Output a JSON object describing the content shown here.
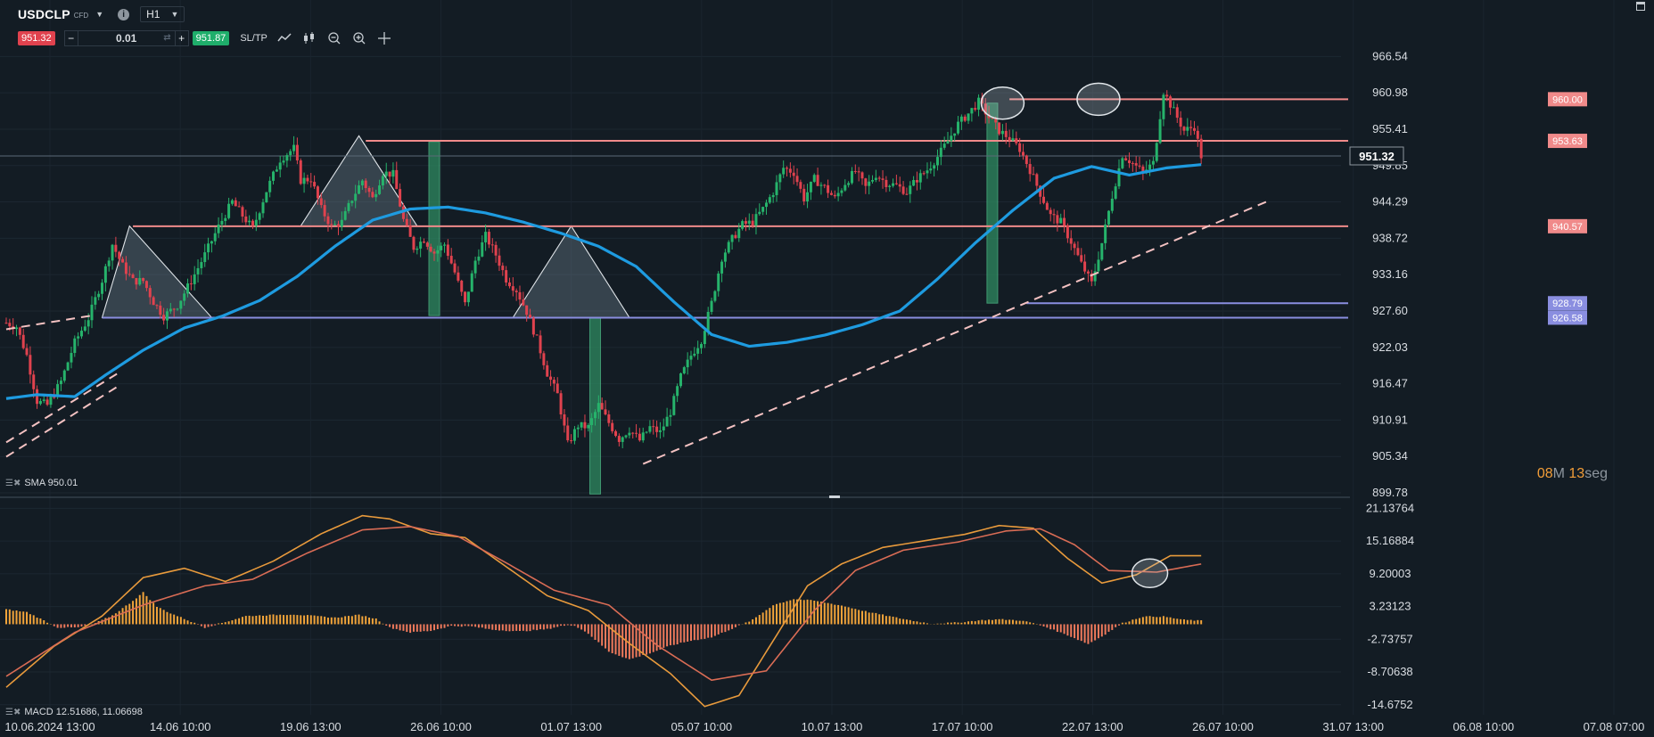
{
  "toolbar": {
    "symbol": "USDCLP",
    "symbol_type": "CFD",
    "timeframe": "H1",
    "sell_price": "951.32",
    "quantity": "0.01",
    "buy_price": "951.87",
    "sltp_label": "SL/TP"
  },
  "indicators": {
    "sma_label": "SMA 950.01",
    "macd_label": "MACD 12.51686, 11.06698"
  },
  "timer": {
    "minutes": "08",
    "m_unit": "M",
    "seconds": "13",
    "s_unit": "seg"
  },
  "colors": {
    "background": "#131c24",
    "bull": "#26b36b",
    "bear": "#e0424e",
    "sma": "#1e9be0",
    "resistance": "#f08a8a",
    "support": "#8a8ee0",
    "trend": "#f4c2c2",
    "macd_hist_pos": "#f2a43a",
    "macd_hist_neg": "#f07a5c",
    "macd_line": "#e89a3c",
    "signal_line": "#d96c55"
  },
  "chart_data": [
    {
      "type": "candlestick",
      "title": "USDCLP",
      "y_axis": {
        "ylim": [
          899.78,
          968.5
        ],
        "ticks": [
          "966.54",
          "960.98",
          "955.41",
          "949.85",
          "944.29",
          "938.72",
          "933.16",
          "927.60",
          "922.03",
          "916.47",
          "910.91",
          "905.34",
          "899.78"
        ]
      },
      "x_axis": {
        "ticks": [
          "10.06.2024 13:00",
          "14.06 10:00",
          "19.06 13:00",
          "26.06 10:00",
          "01.07 13:00",
          "05.07 10:00",
          "10.07 13:00",
          "17.07 10:00",
          "22.07 13:00",
          "26.07 10:00",
          "31.07 13:00",
          "06.08 10:00",
          "07.08 07:00"
        ]
      },
      "close_path": [
        [
          0,
          925.8
        ],
        [
          3,
          925.2
        ],
        [
          6,
          920.8
        ],
        [
          9,
          913.8
        ],
        [
          12,
          913.2
        ],
        [
          16,
          916.8
        ],
        [
          20,
          922.8
        ],
        [
          24,
          926.5
        ],
        [
          28,
          932.3
        ],
        [
          31,
          937.8
        ],
        [
          34,
          934.5
        ],
        [
          37,
          932.2
        ],
        [
          40,
          932.2
        ],
        [
          43,
          929.0
        ],
        [
          46,
          926.8
        ],
        [
          50,
          928.5
        ],
        [
          54,
          932.2
        ],
        [
          58,
          936.2
        ],
        [
          62,
          940.5
        ],
        [
          66,
          944.3
        ],
        [
          69,
          942.2
        ],
        [
          72,
          940.2
        ],
        [
          76,
          946.0
        ],
        [
          80,
          950.8
        ],
        [
          84,
          952.5
        ],
        [
          86,
          947.6
        ],
        [
          89,
          947.8
        ],
        [
          92,
          943.2
        ],
        [
          95,
          940.5
        ],
        [
          98,
          941.2
        ],
        [
          101,
          944.8
        ],
        [
          104,
          947.6
        ],
        [
          107,
          944.8
        ],
        [
          110,
          948.8
        ],
        [
          113,
          948.5
        ],
        [
          116,
          941.5
        ],
        [
          119,
          937.3
        ],
        [
          122,
          938.6
        ],
        [
          125,
          936.5
        ],
        [
          128,
          937.8
        ],
        [
          131,
          933.5
        ],
        [
          134,
          928.6
        ],
        [
          137,
          935.3
        ],
        [
          140,
          939.1
        ],
        [
          143,
          936.2
        ],
        [
          146,
          932.5
        ],
        [
          149,
          930.8
        ],
        [
          152,
          927.5
        ],
        [
          155,
          923.2
        ],
        [
          158,
          918.1
        ],
        [
          161,
          914.8
        ],
        [
          164,
          907.2
        ],
        [
          167,
          910.1
        ],
        [
          170,
          909.8
        ],
        [
          173,
          913.2
        ],
        [
          176,
          910.5
        ],
        [
          179,
          908.0
        ],
        [
          182,
          909.5
        ],
        [
          185,
          907.8
        ],
        [
          188,
          909.8
        ],
        [
          191,
          909.0
        ],
        [
          194,
          912.2
        ],
        [
          197,
          917.5
        ],
        [
          200,
          920.8
        ],
        [
          203,
          923.2
        ],
        [
          206,
          928.8
        ],
        [
          209,
          935.8
        ],
        [
          212,
          938.6
        ],
        [
          215,
          940.8
        ],
        [
          218,
          941.2
        ],
        [
          221,
          943.2
        ],
        [
          224,
          945.8
        ],
        [
          227,
          949.5
        ],
        [
          230,
          948.8
        ],
        [
          233,
          944.8
        ],
        [
          236,
          947.8
        ],
        [
          239,
          946.5
        ],
        [
          242,
          944.8
        ],
        [
          245,
          947.2
        ],
        [
          248,
          949.0
        ],
        [
          251,
          946.5
        ],
        [
          254,
          948.5
        ],
        [
          257,
          947.2
        ],
        [
          260,
          946.8
        ],
        [
          263,
          945.8
        ],
        [
          266,
          947.8
        ],
        [
          269,
          949.2
        ],
        [
          272,
          951.2
        ],
        [
          275,
          953.6
        ],
        [
          278,
          956.2
        ],
        [
          281,
          957.8
        ],
        [
          284,
          959.6
        ],
        [
          287,
          957.2
        ],
        [
          290,
          955.2
        ],
        [
          293,
          954.0
        ],
        [
          296,
          952.4
        ],
        [
          299,
          949.2
        ],
        [
          302,
          945.6
        ],
        [
          305,
          942.2
        ],
        [
          308,
          941.2
        ],
        [
          311,
          938.2
        ],
        [
          314,
          934.8
        ],
        [
          317,
          931.8
        ],
        [
          320,
          938.0
        ],
        [
          323,
          945.2
        ],
        [
          326,
          951.5
        ],
        [
          329,
          950.2
        ],
        [
          332,
          948.8
        ],
        [
          335,
          950.2
        ],
        [
          338,
          961.2
        ],
        [
          341,
          958.2
        ],
        [
          344,
          955.2
        ],
        [
          347,
          955.8
        ],
        [
          349,
          951.3
        ]
      ],
      "sma_path": [
        [
          0,
          914.2
        ],
        [
          9,
          914.8
        ],
        [
          20,
          914.5
        ],
        [
          29,
          917.8
        ],
        [
          40,
          921.6
        ],
        [
          52,
          925.0
        ],
        [
          63,
          926.8
        ],
        [
          74,
          929.2
        ],
        [
          85,
          932.9
        ],
        [
          96,
          937.5
        ],
        [
          107,
          941.5
        ],
        [
          118,
          943.2
        ],
        [
          129,
          943.5
        ],
        [
          140,
          942.6
        ],
        [
          151,
          941.2
        ],
        [
          162,
          939.5
        ],
        [
          173,
          937.5
        ],
        [
          184,
          934.4
        ],
        [
          195,
          929.0
        ],
        [
          206,
          924.0
        ],
        [
          217,
          922.2
        ],
        [
          228,
          922.8
        ],
        [
          239,
          923.9
        ],
        [
          250,
          925.5
        ],
        [
          261,
          927.6
        ],
        [
          272,
          932.5
        ],
        [
          283,
          938.0
        ],
        [
          294,
          943.0
        ],
        [
          306,
          947.9
        ],
        [
          317,
          949.7
        ],
        [
          328,
          948.4
        ],
        [
          339,
          949.5
        ],
        [
          349,
          950.0
        ]
      ],
      "levels": [
        {
          "value": 960.0,
          "label": "960.00",
          "color": "#f08a8a",
          "from_index": 293
        },
        {
          "value": 953.63,
          "label": "953.63",
          "color": "#f08a8a",
          "from_index": 105
        },
        {
          "value": 940.57,
          "label": "940.57",
          "color": "#f08a8a",
          "from_index": 37
        },
        {
          "value": 928.79,
          "label": "928.79",
          "color": "#8a8ee0",
          "from_index": 298
        },
        {
          "value": 926.58,
          "label": "926.58",
          "color": "#8a8ee0",
          "from_index": 28
        }
      ],
      "current_price": {
        "value": 951.32,
        "label": "951.32"
      },
      "annotations": {
        "triangles": [
          {
            "apex": [
              36,
              940.6
            ],
            "base_left": [
              28,
              926.6
            ],
            "base_right": [
              60,
              926.6
            ]
          },
          {
            "apex": [
              103,
              954.4
            ],
            "base_left": [
              86,
              940.6
            ],
            "base_right": [
              120,
              940.6
            ]
          },
          {
            "apex": [
              165,
              940.6
            ],
            "base_left": [
              148,
              926.6
            ],
            "base_right": [
              182,
              926.6
            ]
          }
        ],
        "vertical_bars": [
          {
            "index": 125,
            "y1": 953.5,
            "y2": 926.9
          },
          {
            "index": 172,
            "y1": 926.6,
            "y2": 899.6
          },
          {
            "index": 288,
            "y1": 959.4,
            "y2": 928.8
          }
        ],
        "ellipses": [
          {
            "index": 291,
            "value": 959.4
          },
          {
            "index": 319,
            "value": 960.0
          }
        ],
        "trendlines": [
          {
            "from": [
              186,
              904.2
            ],
            "to": [
              368,
              944.3
            ]
          },
          {
            "from": [
              0,
              905.3
            ],
            "to": [
              33,
              916.2
            ]
          },
          {
            "from": [
              0,
              907.5
            ],
            "to": [
              33,
              918.2
            ]
          },
          {
            "from": [
              0,
              924.8
            ],
            "to": [
              25,
              926.9
            ]
          }
        ]
      }
    },
    {
      "type": "macd",
      "series": [
        {
          "name": "MACD",
          "value": 12.51686
        },
        {
          "name": "Signal",
          "value": 11.06698
        }
      ],
      "y_axis": {
        "ylim": [
          -16.5,
          22.5
        ],
        "ticks": [
          "21.13764",
          "15.16884",
          "9.20003",
          "3.23123",
          "-2.73757",
          "-8.70638",
          "-14.6752"
        ]
      },
      "macd_path": [
        [
          0,
          -11.5
        ],
        [
          14,
          -4.0
        ],
        [
          28,
          1.5
        ],
        [
          40,
          8.5
        ],
        [
          52,
          10.2
        ],
        [
          64,
          7.8
        ],
        [
          78,
          11.5
        ],
        [
          92,
          16.5
        ],
        [
          104,
          19.8
        ],
        [
          112,
          19.2
        ],
        [
          124,
          16.5
        ],
        [
          134,
          15.8
        ],
        [
          146,
          10.5
        ],
        [
          158,
          5.2
        ],
        [
          170,
          2.5
        ],
        [
          182,
          -3.5
        ],
        [
          194,
          -9.0
        ],
        [
          204,
          -15.0
        ],
        [
          214,
          -13.0
        ],
        [
          224,
          -3.0
        ],
        [
          234,
          7.0
        ],
        [
          244,
          11.0
        ],
        [
          256,
          14.0
        ],
        [
          268,
          15.2
        ],
        [
          280,
          16.4
        ],
        [
          290,
          18.0
        ],
        [
          300,
          17.5
        ],
        [
          310,
          12.0
        ],
        [
          320,
          7.5
        ],
        [
          330,
          9.0
        ],
        [
          340,
          12.5
        ],
        [
          350,
          12.5
        ]
      ],
      "signal_path": [
        [
          0,
          -9.5
        ],
        [
          20,
          -1.5
        ],
        [
          40,
          3.5
        ],
        [
          58,
          7.0
        ],
        [
          72,
          8.2
        ],
        [
          88,
          13.0
        ],
        [
          104,
          17.2
        ],
        [
          118,
          17.8
        ],
        [
          132,
          16.0
        ],
        [
          146,
          11.2
        ],
        [
          160,
          6.2
        ],
        [
          176,
          3.5
        ],
        [
          190,
          -3.8
        ],
        [
          206,
          -10.2
        ],
        [
          222,
          -8.5
        ],
        [
          236,
          2.5
        ],
        [
          248,
          9.8
        ],
        [
          262,
          13.5
        ],
        [
          278,
          15.0
        ],
        [
          292,
          17.0
        ],
        [
          302,
          17.4
        ],
        [
          312,
          14.5
        ],
        [
          322,
          9.8
        ],
        [
          336,
          9.5
        ],
        [
          350,
          11.1
        ]
      ],
      "histogram_path": [
        [
          0,
          2.7
        ],
        [
          6,
          2.2
        ],
        [
          10,
          1.0
        ],
        [
          15,
          -0.6
        ],
        [
          21,
          -0.6
        ],
        [
          26,
          0.2
        ],
        [
          31,
          1.6
        ],
        [
          36,
          3.8
        ],
        [
          40,
          5.8
        ],
        [
          44,
          3.2
        ],
        [
          48,
          2.0
        ],
        [
          52,
          1.0
        ],
        [
          58,
          -0.6
        ],
        [
          64,
          0.4
        ],
        [
          70,
          1.5
        ],
        [
          78,
          1.7
        ],
        [
          84,
          1.8
        ],
        [
          90,
          1.5
        ],
        [
          96,
          1.2
        ],
        [
          103,
          1.7
        ],
        [
          108,
          1.0
        ],
        [
          112,
          -0.6
        ],
        [
          118,
          -1.5
        ],
        [
          124,
          -1.2
        ],
        [
          130,
          -0.3
        ],
        [
          136,
          -0.4
        ],
        [
          142,
          -1.0
        ],
        [
          150,
          -1.3
        ],
        [
          158,
          -0.9
        ],
        [
          162,
          -0.3
        ],
        [
          166,
          -0.2
        ],
        [
          170,
          -1.7
        ],
        [
          176,
          -5.0
        ],
        [
          182,
          -6.4
        ],
        [
          188,
          -5.3
        ],
        [
          194,
          -3.9
        ],
        [
          200,
          -3.0
        ],
        [
          206,
          -2.4
        ],
        [
          212,
          -0.8
        ],
        [
          218,
          0.8
        ],
        [
          224,
          3.5
        ],
        [
          230,
          4.6
        ],
        [
          236,
          4.3
        ],
        [
          244,
          3.4
        ],
        [
          252,
          2.2
        ],
        [
          260,
          1.2
        ],
        [
          266,
          0.5
        ],
        [
          270,
          0.1
        ],
        [
          278,
          0.3
        ],
        [
          284,
          0.7
        ],
        [
          290,
          0.9
        ],
        [
          296,
          0.7
        ],
        [
          300,
          0.2
        ],
        [
          304,
          -0.6
        ],
        [
          310,
          -2.0
        ],
        [
          316,
          -3.6
        ],
        [
          320,
          -2.2
        ],
        [
          326,
          0.2
        ],
        [
          332,
          1.4
        ],
        [
          338,
          1.4
        ],
        [
          344,
          0.8
        ],
        [
          350,
          0.6
        ]
      ]
    }
  ]
}
